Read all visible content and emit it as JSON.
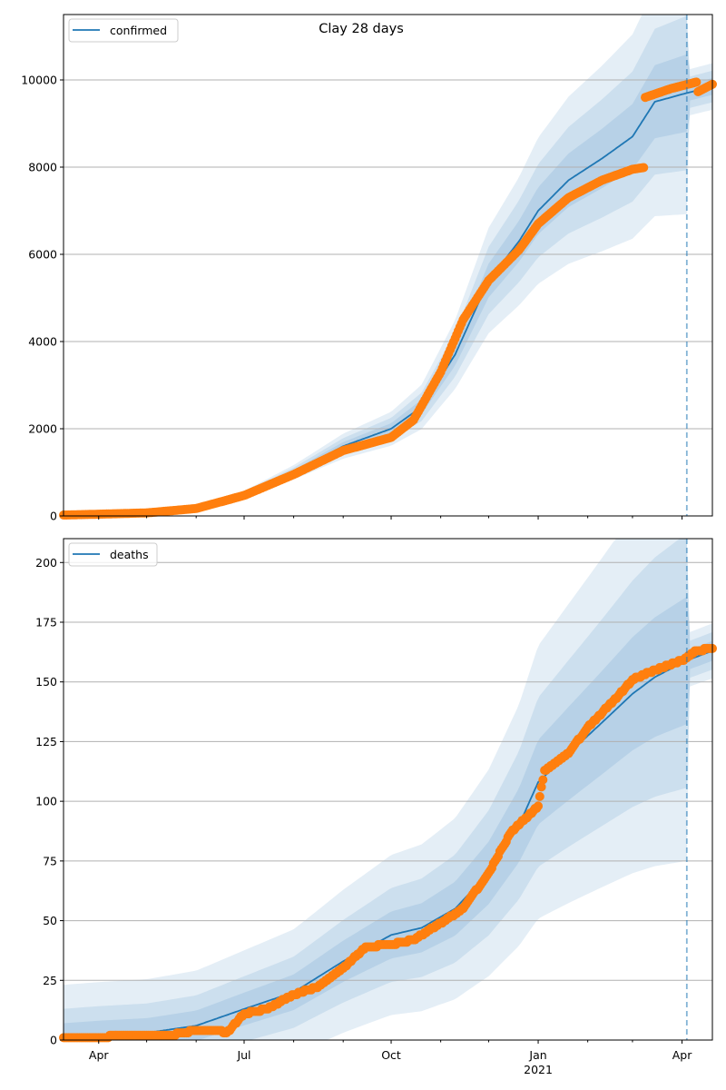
{
  "chart_data": [
    {
      "type": "line",
      "title": "Clay 28 days",
      "legend": {
        "label": "confirmed",
        "placement": "top-left"
      },
      "ylim": [
        0,
        11500
      ],
      "yticks": [
        0,
        2000,
        4000,
        6000,
        8000,
        10000
      ],
      "ytick_labels": [
        "0",
        "2000",
        "4000",
        "6000",
        "8000",
        "10000"
      ],
      "grid": "y",
      "forecast_start": "2021-04-04",
      "model_x": [
        "2020-03-10",
        "2020-04-01",
        "2020-05-01",
        "2020-06-01",
        "2020-07-01",
        "2020-08-01",
        "2020-09-01",
        "2020-10-01",
        "2020-10-20",
        "2020-11-10",
        "2020-12-01",
        "2020-12-20",
        "2021-01-01",
        "2021-01-20",
        "2021-02-10",
        "2021-03-01",
        "2021-03-15",
        "2021-04-04",
        "2021-04-20"
      ],
      "model_y": [
        20,
        40,
        80,
        180,
        500,
        1000,
        1600,
        2000,
        2500,
        3700,
        5400,
        6300,
        7000,
        7700,
        8200,
        8700,
        9500,
        9700,
        9850
      ],
      "band_halfwidth_frac": [
        0.05,
        0.12,
        0.2
      ],
      "observed_x": [
        "2020-03-10",
        "2020-04-01",
        "2020-05-01",
        "2020-06-01",
        "2020-07-01",
        "2020-08-01",
        "2020-09-01",
        "2020-10-01",
        "2020-10-15",
        "2020-11-01",
        "2020-11-15",
        "2020-12-01",
        "2020-12-20",
        "2021-01-01",
        "2021-01-20",
        "2021-02-10",
        "2021-03-01",
        "2021-03-08",
        "2021-03-09",
        "2021-03-25",
        "2021-04-10",
        "2021-04-11",
        "2021-04-20"
      ],
      "observed_y": [
        20,
        40,
        70,
        170,
        470,
        950,
        1500,
        1800,
        2200,
        3300,
        4500,
        5400,
        6100,
        6700,
        7300,
        7700,
        7950,
        7990,
        9600,
        9800,
        9950,
        9730,
        9900
      ]
    },
    {
      "type": "line",
      "title": "",
      "legend": {
        "label": "deaths",
        "placement": "top-left"
      },
      "ylim": [
        0,
        210
      ],
      "yticks": [
        0,
        25,
        50,
        75,
        100,
        125,
        150,
        175,
        200
      ],
      "ytick_labels": [
        "0",
        "25",
        "50",
        "75",
        "100",
        "125",
        "150",
        "175",
        "200"
      ],
      "grid": "y",
      "forecast_start": "2021-04-04",
      "xtick_labels": [
        "Apr",
        "Jul",
        "Oct",
        "Jan\n2021",
        "Apr"
      ],
      "xtick_dates": [
        "2020-04-01",
        "2020-07-01",
        "2020-10-01",
        "2021-01-01",
        "2021-04-01"
      ],
      "model_x": [
        "2020-03-10",
        "2020-04-01",
        "2020-05-01",
        "2020-06-01",
        "2020-07-01",
        "2020-08-01",
        "2020-09-01",
        "2020-10-01",
        "2020-10-20",
        "2020-11-10",
        "2020-12-01",
        "2020-12-20",
        "2021-01-01",
        "2021-01-20",
        "2021-02-10",
        "2021-03-01",
        "2021-03-15",
        "2021-04-04",
        "2021-04-20"
      ],
      "model_y": [
        1,
        2,
        3,
        6,
        13,
        20,
        33,
        44,
        47,
        55,
        70,
        90,
        108,
        120,
        133,
        145,
        152,
        159,
        163
      ],
      "band_lo": [
        [
          0,
          0,
          0,
          0,
          0,
          0
        ],
        [
          0,
          0,
          1,
          2,
          4,
          0
        ],
        [
          0,
          0,
          1,
          2,
          6,
          0
        ]
      ],
      "observed_x": [
        "2020-03-10",
        "2020-04-01",
        "2020-04-15",
        "2020-05-15",
        "2020-06-01",
        "2020-06-15",
        "2020-06-20",
        "2020-07-01",
        "2020-07-15",
        "2020-08-01",
        "2020-08-15",
        "2020-09-01",
        "2020-09-15",
        "2020-10-01",
        "2020-10-15",
        "2020-11-01",
        "2020-11-15",
        "2020-12-01",
        "2020-12-15",
        "2021-01-01",
        "2021-01-05",
        "2021-01-20",
        "2021-02-01",
        "2021-02-20",
        "2021-03-01",
        "2021-03-15",
        "2021-04-01",
        "2021-04-10",
        "2021-04-20"
      ],
      "observed_y": [
        1,
        1,
        2,
        2,
        4,
        4,
        3,
        11,
        13,
        19,
        22,
        30,
        39,
        40,
        42,
        49,
        55,
        70,
        87,
        98,
        113,
        120,
        131,
        144,
        151,
        155,
        159,
        163,
        164
      ]
    }
  ],
  "x_axis": {
    "tick_labels": [
      "Apr",
      "Jul",
      "Oct",
      "Jan",
      "Apr"
    ],
    "year_label": "2021"
  }
}
